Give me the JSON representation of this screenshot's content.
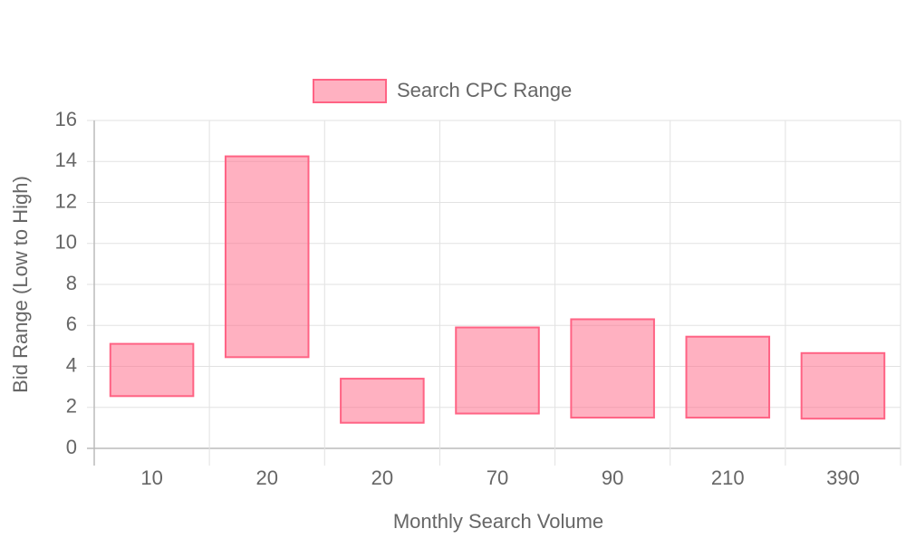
{
  "chart_data": {
    "type": "floating-bar",
    "x_label": "Monthly Search Volume",
    "y_label": "Bid Range (Low to High)",
    "categories": [
      "10",
      "20",
      "20",
      "70",
      "90",
      "210",
      "390"
    ],
    "series": [
      {
        "name": "Search CPC Range",
        "color": "#ff6384",
        "fill": "rgba(255,99,132,0.5)",
        "values": [
          [
            2.55,
            5.1
          ],
          [
            4.45,
            14.25
          ],
          [
            1.25,
            3.4
          ],
          [
            1.7,
            5.9
          ],
          [
            1.5,
            6.3
          ],
          [
            1.5,
            5.45
          ],
          [
            1.45,
            4.65
          ]
        ]
      }
    ],
    "ylim": [
      0,
      16
    ],
    "yticks": [
      0,
      2,
      4,
      6,
      8,
      10,
      12,
      14,
      16
    ],
    "grid": true,
    "legend": "top"
  }
}
